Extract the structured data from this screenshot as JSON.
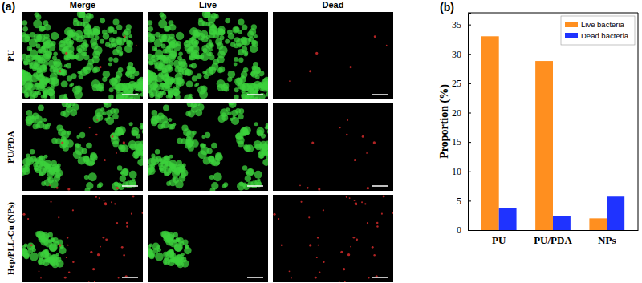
{
  "figure": {
    "panel_a": {
      "label": "(a)",
      "columns": [
        "Merge",
        "Live",
        "Dead"
      ],
      "rows": [
        "PU",
        "PU/PDA",
        "Hep/PLL-Cu (NPs)"
      ]
    },
    "panel_b": {
      "label": "(b)"
    }
  },
  "chart_data": {
    "type": "bar",
    "y_label": "Proportion (%)",
    "categories": [
      "PU",
      "PU/PDA",
      "NPs"
    ],
    "series": [
      {
        "name": "Live bacteria",
        "color": "#ff8f1f",
        "values": [
          33.0,
          28.8,
          2.0
        ]
      },
      {
        "name": "Dead bacteria",
        "color": "#1f33ff",
        "values": [
          3.7,
          2.4,
          5.7
        ]
      }
    ],
    "ylim": [
      0,
      37
    ],
    "yticks": [
      0,
      5,
      10,
      15,
      20,
      25,
      30,
      35
    ],
    "legend": "upper right"
  }
}
